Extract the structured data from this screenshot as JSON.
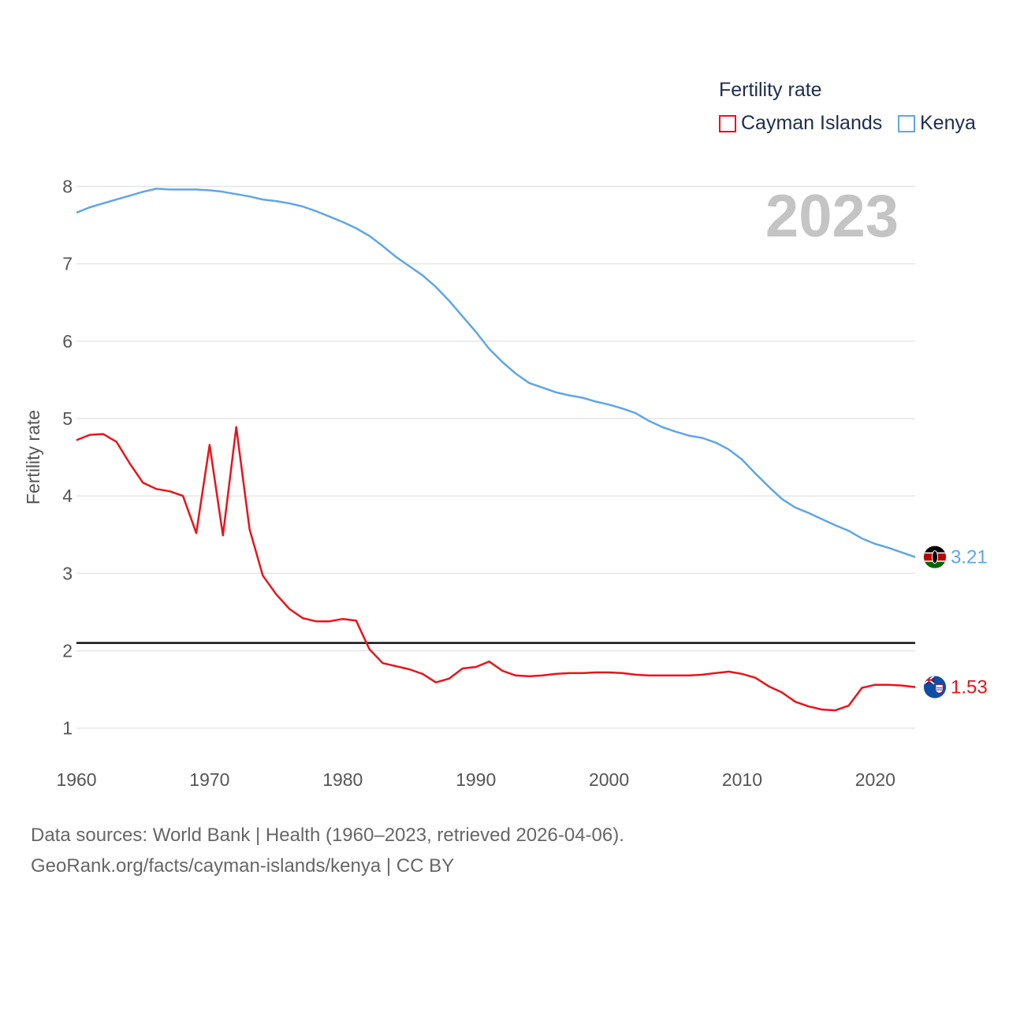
{
  "chart_data": {
    "type": "line",
    "title": "",
    "legend_title": "Fertility rate",
    "ylabel": "Fertility rate",
    "xlabel": "",
    "year_label": "2023",
    "xlim": [
      1960,
      2023
    ],
    "ylim": [
      0.65,
      8.3
    ],
    "x_ticks": [
      1960,
      1970,
      1980,
      1990,
      2000,
      2010,
      2020
    ],
    "y_ticks": [
      1,
      2,
      3,
      4,
      5,
      6,
      7,
      8
    ],
    "reference_line": {
      "value": 2.1,
      "color": "#111111"
    },
    "x": [
      1960,
      1961,
      1962,
      1963,
      1964,
      1965,
      1966,
      1967,
      1968,
      1969,
      1970,
      1971,
      1972,
      1973,
      1974,
      1975,
      1976,
      1977,
      1978,
      1979,
      1980,
      1981,
      1982,
      1983,
      1984,
      1985,
      1986,
      1987,
      1988,
      1989,
      1990,
      1991,
      1992,
      1993,
      1994,
      1995,
      1996,
      1997,
      1998,
      1999,
      2000,
      2001,
      2002,
      2003,
      2004,
      2005,
      2006,
      2007,
      2008,
      2009,
      2010,
      2011,
      2012,
      2013,
      2014,
      2015,
      2016,
      2017,
      2018,
      2019,
      2020,
      2021,
      2022,
      2023
    ],
    "series": [
      {
        "name": "Cayman Islands",
        "color": "#e8141a",
        "end_label": "1.53",
        "flag": "cayman-islands-flag-icon",
        "values": [
          4.72,
          4.79,
          4.8,
          4.7,
          4.42,
          4.17,
          4.09,
          4.06,
          4.0,
          3.52,
          4.66,
          3.49,
          4.89,
          3.57,
          2.97,
          2.73,
          2.54,
          2.42,
          2.38,
          2.38,
          2.41,
          2.39,
          2.02,
          1.84,
          1.8,
          1.76,
          1.7,
          1.59,
          1.64,
          1.77,
          1.79,
          1.86,
          1.74,
          1.68,
          1.67,
          1.68,
          1.7,
          1.71,
          1.71,
          1.72,
          1.72,
          1.71,
          1.69,
          1.68,
          1.68,
          1.68,
          1.68,
          1.69,
          1.71,
          1.73,
          1.7,
          1.65,
          1.54,
          1.46,
          1.34,
          1.28,
          1.24,
          1.23,
          1.29,
          1.52,
          1.56,
          1.56,
          1.55,
          1.53
        ]
      },
      {
        "name": "Kenya",
        "color": "#5ea6e6",
        "end_label": "3.21",
        "flag": "kenya-flag-icon",
        "values": [
          7.66,
          7.73,
          7.78,
          7.83,
          7.88,
          7.93,
          7.97,
          7.96,
          7.96,
          7.96,
          7.95,
          7.93,
          7.9,
          7.87,
          7.83,
          7.81,
          7.78,
          7.74,
          7.68,
          7.61,
          7.54,
          7.46,
          7.36,
          7.23,
          7.09,
          6.97,
          6.85,
          6.7,
          6.52,
          6.32,
          6.12,
          5.9,
          5.73,
          5.58,
          5.46,
          5.4,
          5.34,
          5.3,
          5.27,
          5.22,
          5.18,
          5.13,
          5.07,
          4.97,
          4.89,
          4.83,
          4.78,
          4.75,
          4.69,
          4.6,
          4.47,
          4.29,
          4.12,
          3.96,
          3.85,
          3.78,
          3.7,
          3.62,
          3.55,
          3.45,
          3.38,
          3.33,
          3.27,
          3.21
        ]
      }
    ]
  },
  "footer": {
    "line1": "Data sources: World Bank | Health (1960–2023, retrieved 2026-04-06).",
    "line2": "GeoRank.org/facts/cayman-islands/kenya | CC BY"
  }
}
